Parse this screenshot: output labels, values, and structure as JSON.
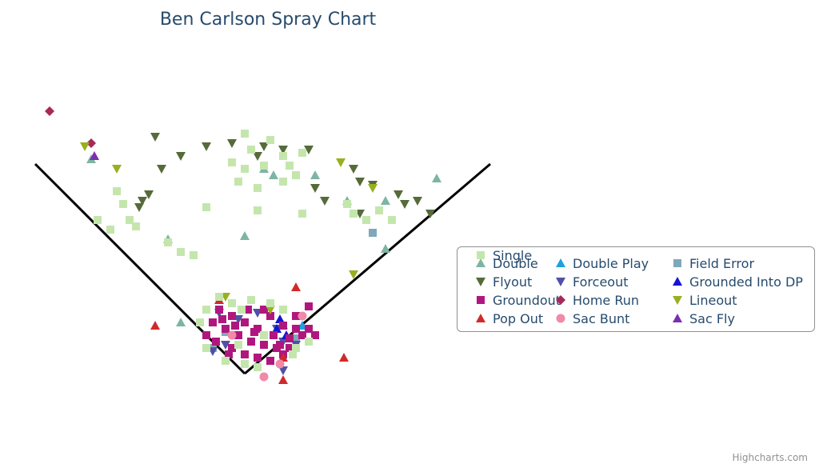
{
  "title": "Ben Carlson Spray Chart",
  "credits": "Highcharts.com",
  "chart_data": {
    "type": "scatter",
    "title": "Ben Carlson Spray Chart",
    "legend_position": "right",
    "grid": false,
    "x_range": [
      -320,
      320
    ],
    "y_range": [
      0,
      420
    ],
    "series": [
      {
        "name": "Double",
        "symbol": "triangle",
        "color": "#7db5a3",
        "points": [
          [
            -240,
            335
          ],
          [
            -100,
            80
          ],
          [
            -120,
            210
          ],
          [
            0,
            215
          ],
          [
            30,
            320
          ],
          [
            45,
            310
          ],
          [
            110,
            310
          ],
          [
            160,
            270
          ],
          [
            220,
            195
          ],
          [
            220,
            270
          ],
          [
            300,
            305
          ]
        ]
      },
      {
        "name": "Double Play",
        "symbol": "triangle",
        "color": "#20a0e0",
        "points": [
          [
            60,
            76
          ],
          [
            90,
            75
          ]
        ]
      },
      {
        "name": "Field Error",
        "symbol": "square",
        "color": "#7fa8b8",
        "points": [
          [
            -30,
            65
          ],
          [
            -50,
            40
          ],
          [
            200,
            220
          ],
          [
            80,
            55
          ]
        ]
      },
      {
        "name": "Flyout",
        "symbol": "triangle-down",
        "color": "#556b3a",
        "points": [
          [
            -140,
            370
          ],
          [
            -100,
            340
          ],
          [
            -60,
            355
          ],
          [
            -20,
            360
          ],
          [
            30,
            355
          ],
          [
            20,
            340
          ],
          [
            60,
            350
          ],
          [
            100,
            350
          ],
          [
            170,
            320
          ],
          [
            180,
            300
          ],
          [
            200,
            295
          ],
          [
            240,
            280
          ],
          [
            250,
            265
          ],
          [
            270,
            270
          ],
          [
            290,
            250
          ],
          [
            -130,
            320
          ],
          [
            -150,
            280
          ],
          [
            -160,
            270
          ],
          [
            -165,
            260
          ],
          [
            110,
            290
          ],
          [
            125,
            270
          ],
          [
            180,
            250
          ]
        ]
      },
      {
        "name": "Forceout",
        "symbol": "triangle-down",
        "color": "#5050a8",
        "points": [
          [
            -40,
            95
          ],
          [
            -10,
            85
          ],
          [
            20,
            95
          ],
          [
            50,
            70
          ],
          [
            60,
            50
          ],
          [
            80,
            45
          ],
          [
            -20,
            60
          ],
          [
            -50,
            35
          ],
          [
            60,
            5
          ],
          [
            -30,
            45
          ]
        ]
      },
      {
        "name": "Grounded Into DP",
        "symbol": "triangle",
        "color": "#1515d0",
        "points": [
          [
            55,
            85
          ],
          [
            50,
            70
          ],
          [
            65,
            60
          ]
        ]
      },
      {
        "name": "Groundout",
        "symbol": "square",
        "color": "#b0177e",
        "points": [
          [
            -40,
            100
          ],
          [
            -20,
            90
          ],
          [
            0,
            80
          ],
          [
            20,
            70
          ],
          [
            40,
            90
          ],
          [
            60,
            75
          ],
          [
            80,
            70
          ],
          [
            100,
            105
          ],
          [
            110,
            60
          ],
          [
            -30,
            70
          ],
          [
            -10,
            60
          ],
          [
            10,
            50
          ],
          [
            30,
            45
          ],
          [
            50,
            40
          ],
          [
            70,
            55
          ],
          [
            90,
            60
          ],
          [
            40,
            20
          ],
          [
            20,
            25
          ],
          [
            0,
            30
          ],
          [
            -20,
            40
          ],
          [
            -50,
            80
          ],
          [
            -60,
            60
          ],
          [
            -45,
            50
          ],
          [
            60,
            30
          ],
          [
            70,
            40
          ],
          [
            80,
            90
          ],
          [
            30,
            100
          ],
          [
            -15,
            75
          ],
          [
            5,
            100
          ],
          [
            45,
            60
          ],
          [
            -35,
            85
          ],
          [
            15,
            65
          ],
          [
            100,
            70
          ],
          [
            -25,
            30
          ],
          [
            55,
            45
          ]
        ]
      },
      {
        "name": "Home Run",
        "symbol": "diamond",
        "color": "#a82858",
        "points": [
          [
            -305,
            410
          ],
          [
            -240,
            360
          ]
        ]
      },
      {
        "name": "Lineout",
        "symbol": "triangle-down",
        "color": "#98b020",
        "points": [
          [
            -250,
            355
          ],
          [
            -200,
            320
          ],
          [
            40,
            100
          ],
          [
            -30,
            120
          ],
          [
            150,
            330
          ],
          [
            200,
            290
          ],
          [
            170,
            155
          ]
        ]
      },
      {
        "name": "Pop Out",
        "symbol": "triangle",
        "color": "#d02a2a",
        "points": [
          [
            -140,
            75
          ],
          [
            80,
            135
          ],
          [
            -40,
            115
          ],
          [
            60,
            25
          ],
          [
            60,
            -10
          ],
          [
            155,
            25
          ]
        ]
      },
      {
        "name": "Sac Bunt",
        "symbol": "circle",
        "color": "#f08aa8",
        "points": [
          [
            -20,
            60
          ],
          [
            30,
            -5
          ],
          [
            90,
            90
          ],
          [
            55,
            15
          ]
        ]
      },
      {
        "name": "Sac Fly",
        "symbol": "triangle",
        "color": "#7a2fb0",
        "points": [
          [
            -235,
            340
          ]
        ]
      },
      {
        "name": "Single",
        "symbol": "square",
        "color": "#c4e6ad",
        "points": [
          [
            0,
            375
          ],
          [
            10,
            350
          ],
          [
            40,
            365
          ],
          [
            60,
            340
          ],
          [
            90,
            345
          ],
          [
            -20,
            330
          ],
          [
            0,
            320
          ],
          [
            30,
            325
          ],
          [
            70,
            325
          ],
          [
            80,
            310
          ],
          [
            -10,
            300
          ],
          [
            20,
            290
          ],
          [
            60,
            300
          ],
          [
            -60,
            260
          ],
          [
            20,
            255
          ],
          [
            90,
            250
          ],
          [
            -120,
            205
          ],
          [
            -100,
            190
          ],
          [
            -80,
            185
          ],
          [
            -200,
            285
          ],
          [
            -190,
            265
          ],
          [
            -180,
            240
          ],
          [
            -170,
            230
          ],
          [
            -210,
            225
          ],
          [
            -230,
            240
          ],
          [
            160,
            265
          ],
          [
            170,
            250
          ],
          [
            190,
            240
          ],
          [
            210,
            255
          ],
          [
            230,
            240
          ],
          [
            -40,
            120
          ],
          [
            -20,
            110
          ],
          [
            10,
            115
          ],
          [
            -60,
            100
          ],
          [
            40,
            110
          ],
          [
            60,
            100
          ],
          [
            -70,
            80
          ],
          [
            -60,
            40
          ],
          [
            -30,
            20
          ],
          [
            0,
            15
          ],
          [
            20,
            10
          ],
          [
            -10,
            45
          ],
          [
            80,
            40
          ],
          [
            30,
            60
          ],
          [
            -5,
            100
          ],
          [
            100,
            50
          ],
          [
            75,
            30
          ]
        ]
      }
    ]
  },
  "field": {
    "lines": "foul-lines"
  }
}
